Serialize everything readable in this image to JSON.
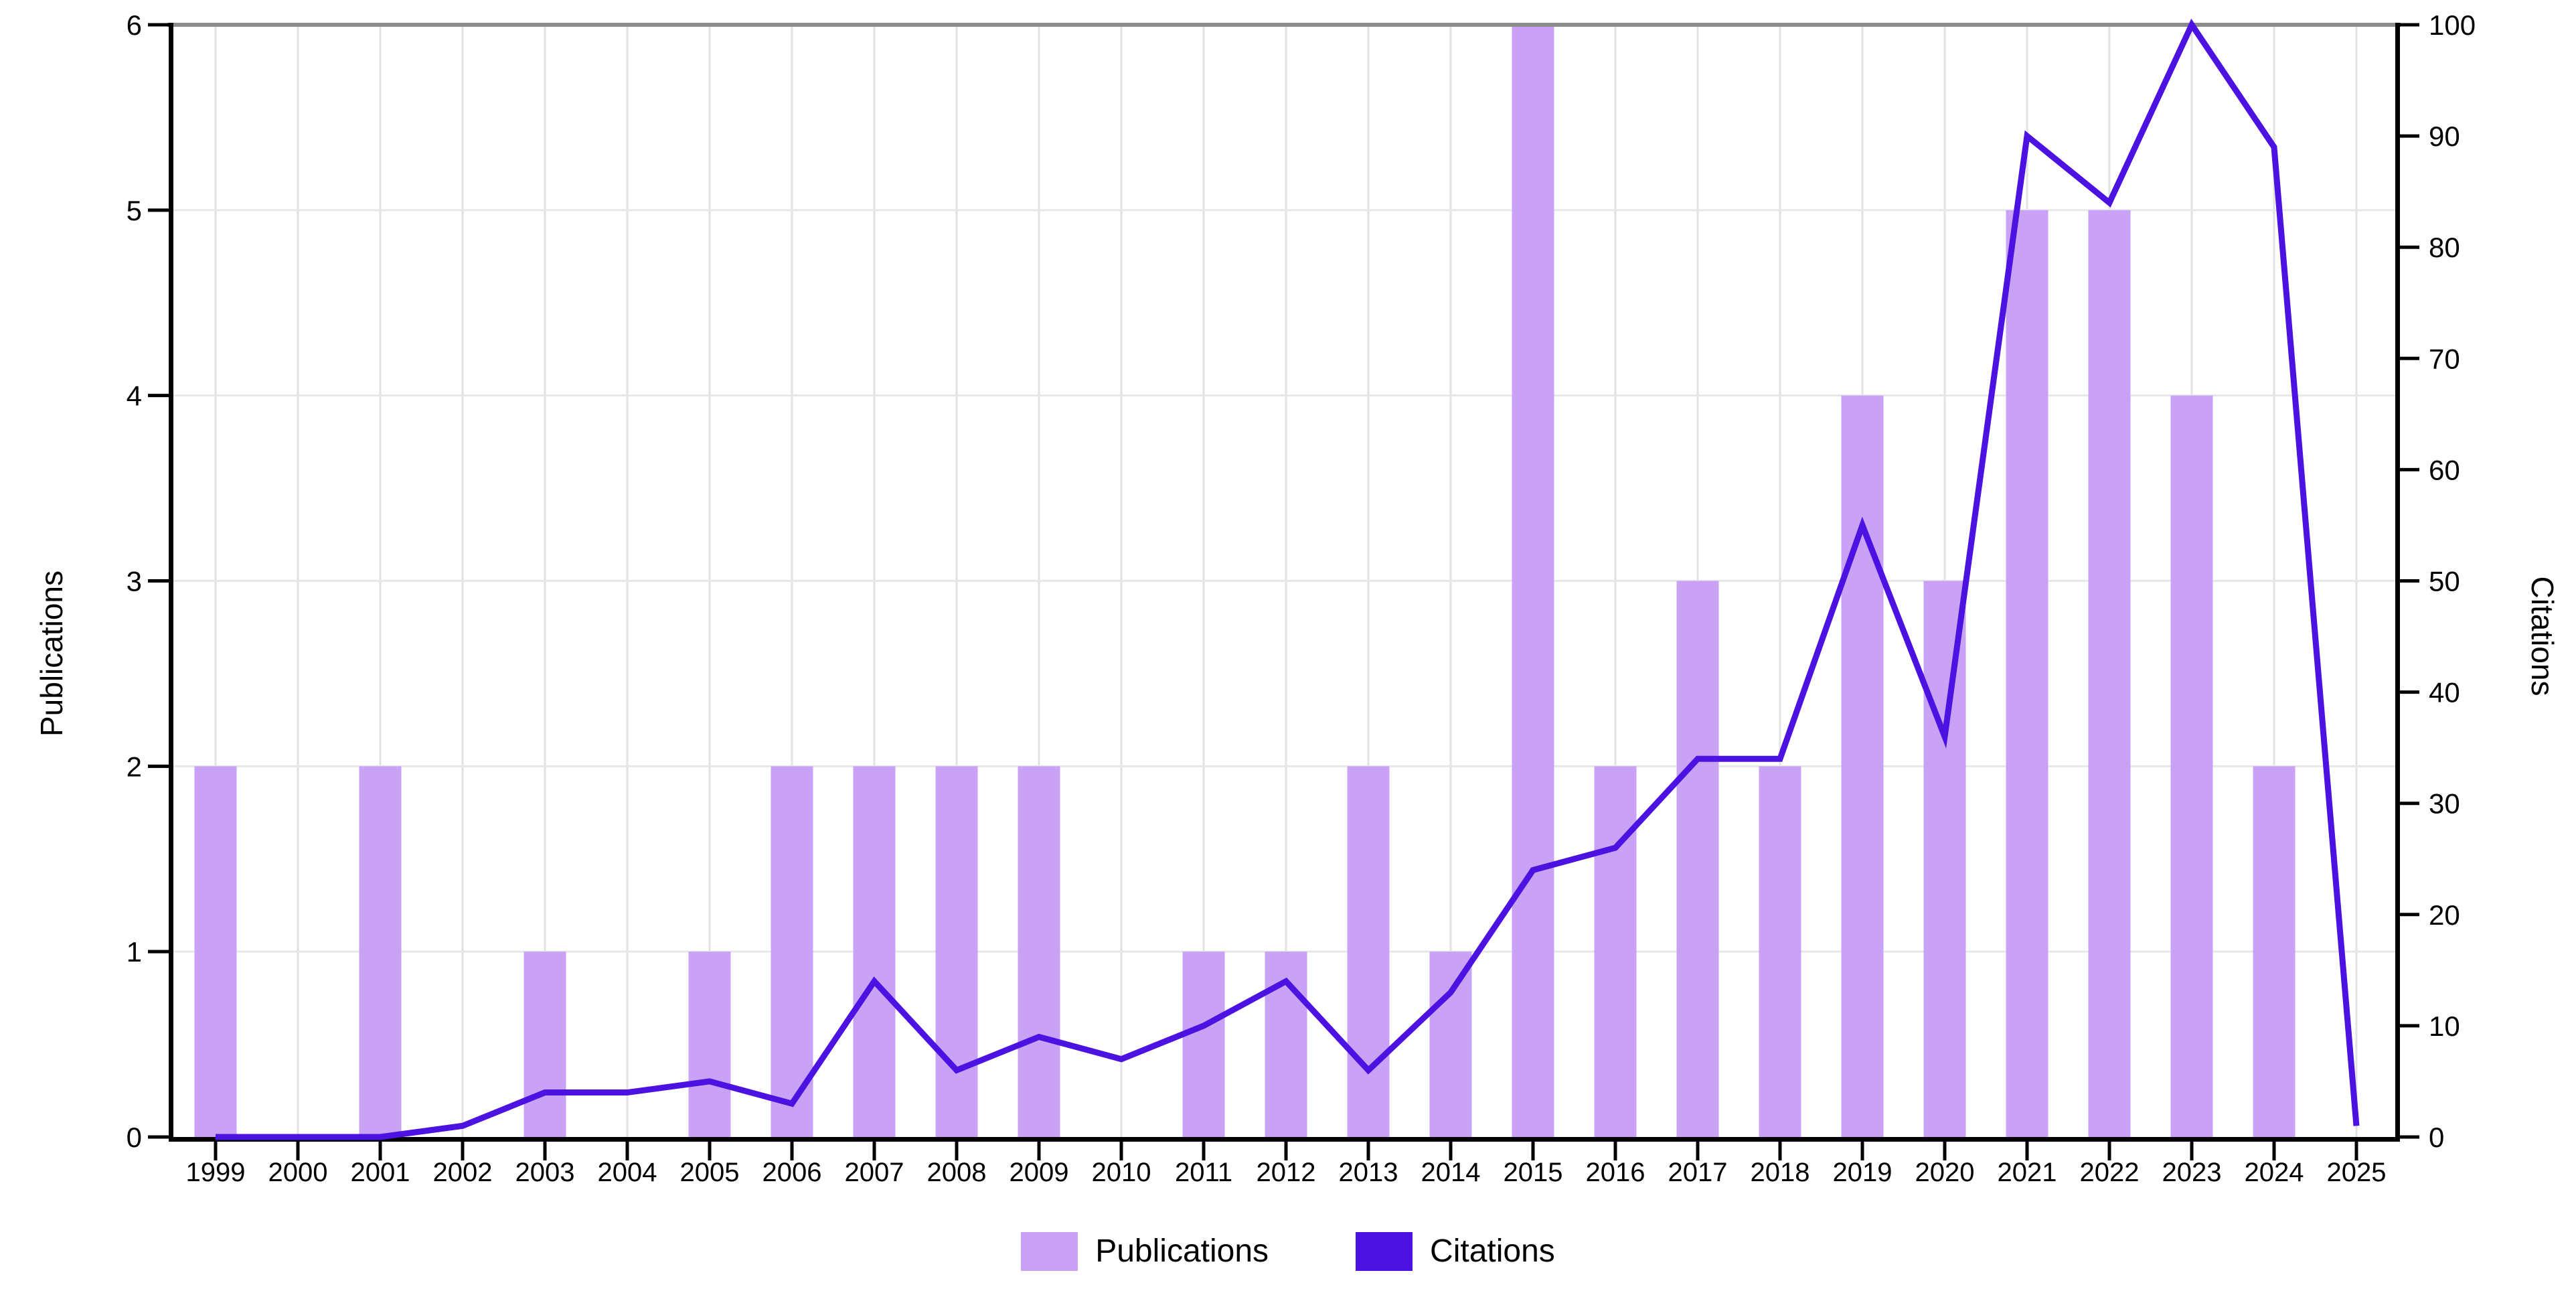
{
  "chart_data": {
    "type": "bar",
    "title": "",
    "categories": [
      "1999",
      "2000",
      "2001",
      "2002",
      "2003",
      "2004",
      "2005",
      "2006",
      "2007",
      "2008",
      "2009",
      "2010",
      "2011",
      "2012",
      "2013",
      "2014",
      "2015",
      "2016",
      "2017",
      "2018",
      "2019",
      "2020",
      "2021",
      "2022",
      "2023",
      "2024",
      "2025"
    ],
    "series": [
      {
        "name": "Publications",
        "kind": "bar",
        "axis": "left",
        "color": "#C9A2F6",
        "values": [
          2,
          0,
          2,
          0,
          1,
          0,
          1,
          2,
          2,
          2,
          2,
          0,
          1,
          1,
          2,
          1,
          6,
          2,
          3,
          2,
          4,
          3,
          5,
          5,
          4,
          2,
          0
        ]
      },
      {
        "name": "Citations",
        "kind": "line",
        "axis": "right",
        "color": "#4C12E2",
        "values": [
          0,
          0,
          0,
          1,
          4,
          4,
          5,
          3,
          14,
          6,
          9,
          7,
          10,
          14,
          6,
          13,
          24,
          26,
          34,
          34,
          55,
          36,
          90,
          84,
          100,
          89,
          1
        ]
      }
    ],
    "left_axis": {
      "title": "Publications",
      "min": 0,
      "max": 6,
      "ticks": [
        0,
        1,
        2,
        3,
        4,
        5,
        6
      ]
    },
    "right_axis": {
      "title": "Citations",
      "min": 0,
      "max": 100,
      "ticks": [
        0,
        10,
        20,
        30,
        40,
        50,
        60,
        70,
        80,
        90,
        100
      ]
    },
    "grid": true,
    "legend_position": "bottom"
  },
  "axes": {
    "left_title": "Publications",
    "right_title": "Citations"
  },
  "legend": {
    "publications_label": "Publications",
    "citations_label": "Citations"
  },
  "colors": {
    "bar": "#C9A2F6",
    "line": "#4C12E2",
    "grid_vertical": "#e2e2e2",
    "grid_horizontal": "#e7e7e7",
    "top_border": "#8c8c8c",
    "axis": "#000000",
    "text": "#000000",
    "background": "#ffffff"
  }
}
